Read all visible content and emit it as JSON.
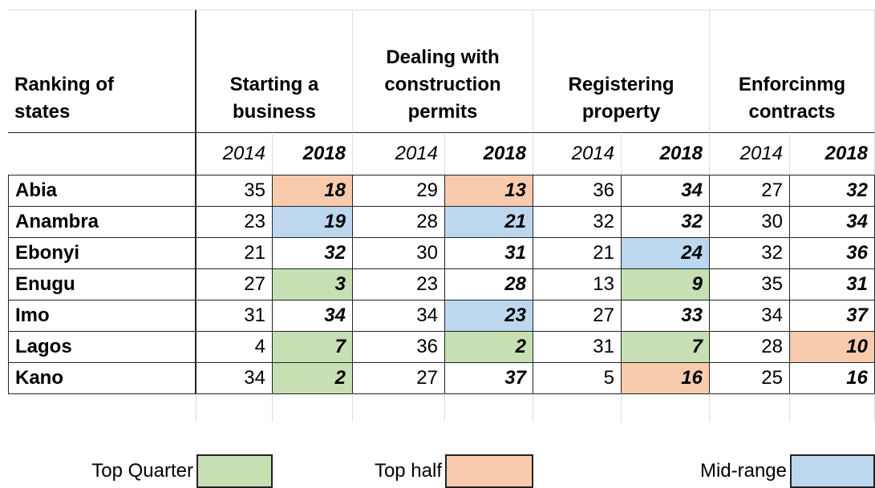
{
  "table": {
    "corner": "Ranking of\nstates",
    "groups": [
      "Starting a\nbusiness",
      "Dealing with\nconstruction\npermits",
      "Registering\nproperty",
      "Enforcinmg\ncontracts"
    ],
    "years": [
      "2014",
      "2018",
      "2014",
      "2018",
      "2014",
      "2018",
      "2014",
      "2018"
    ],
    "rows": [
      {
        "state": "Abia",
        "values": [
          35,
          18,
          29,
          13,
          36,
          34,
          27,
          32
        ],
        "fills": [
          null,
          "#f8cbad",
          null,
          "#f8cbad",
          null,
          null,
          null,
          null
        ]
      },
      {
        "state": "Anambra",
        "values": [
          23,
          19,
          28,
          21,
          32,
          32,
          30,
          34
        ],
        "fills": [
          null,
          "#bdd7ee",
          null,
          "#bdd7ee",
          null,
          null,
          null,
          null
        ]
      },
      {
        "state": "Ebonyi",
        "values": [
          21,
          32,
          30,
          31,
          21,
          24,
          32,
          36
        ],
        "fills": [
          null,
          null,
          null,
          null,
          null,
          "#bdd7ee",
          null,
          null
        ]
      },
      {
        "state": "Enugu",
        "values": [
          27,
          3,
          23,
          28,
          13,
          9,
          35,
          31
        ],
        "fills": [
          null,
          "#c6e0b4",
          null,
          null,
          null,
          "#c6e0b4",
          null,
          null
        ]
      },
      {
        "state": "Imo",
        "values": [
          31,
          34,
          34,
          23,
          27,
          33,
          34,
          37
        ],
        "fills": [
          null,
          null,
          null,
          "#bdd7ee",
          null,
          null,
          null,
          null
        ]
      },
      {
        "state": "Lagos",
        "values": [
          4,
          7,
          36,
          2,
          31,
          7,
          28,
          10
        ],
        "fills": [
          null,
          "#c6e0b4",
          null,
          "#c6e0b4",
          null,
          "#c6e0b4",
          null,
          "#f8cbad"
        ]
      },
      {
        "state": "Kano",
        "values": [
          34,
          2,
          27,
          37,
          5,
          16,
          25,
          16
        ],
        "fills": [
          null,
          "#c6e0b4",
          null,
          null,
          null,
          "#f8cbad",
          null,
          null
        ]
      }
    ],
    "legend": [
      {
        "label": "Top Quarter",
        "color": "#c6e0b4"
      },
      {
        "label": "Top half",
        "color": "#f8cbad"
      },
      {
        "label": "Mid-range",
        "color": "#bdd7ee"
      }
    ]
  }
}
